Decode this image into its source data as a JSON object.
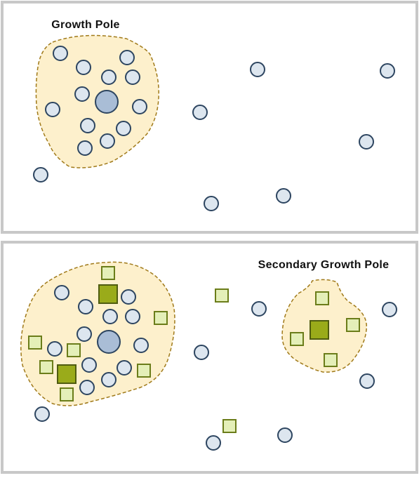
{
  "panels": [
    {
      "label": "Growth Pole"
    },
    {
      "label": "Secondary Growth Pole"
    }
  ]
}
